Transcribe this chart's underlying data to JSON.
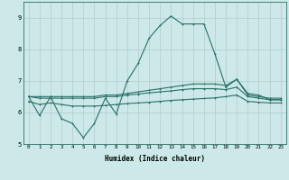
{
  "xlabel": "Humidex (Indice chaleur)",
  "bg_color": "#cce8e8",
  "line_color": "#2a7068",
  "grid_color": "#b0cccc",
  "xlim": [
    -0.5,
    23.5
  ],
  "ylim": [
    5,
    9.5
  ],
  "xticks": [
    0,
    1,
    2,
    3,
    4,
    5,
    6,
    7,
    8,
    9,
    10,
    11,
    12,
    13,
    14,
    15,
    16,
    17,
    18,
    19,
    20,
    21,
    22,
    23
  ],
  "yticks": [
    5,
    6,
    7,
    8,
    9
  ],
  "line1_x": [
    0,
    1,
    2,
    3,
    4,
    5,
    6,
    7,
    8,
    9,
    10,
    11,
    12,
    13,
    14,
    15,
    16,
    17,
    18,
    19,
    20,
    21,
    22,
    23
  ],
  "line1_y": [
    6.5,
    5.9,
    6.5,
    5.8,
    5.65,
    5.2,
    5.65,
    6.45,
    5.95,
    7.0,
    7.55,
    8.35,
    8.75,
    9.05,
    8.8,
    8.8,
    8.8,
    7.85,
    6.8,
    7.05,
    6.6,
    6.55,
    6.4,
    6.4
  ],
  "line2_x": [
    0,
    1,
    2,
    3,
    4,
    5,
    6,
    7,
    8,
    9,
    10,
    11,
    12,
    13,
    14,
    15,
    16,
    17,
    18,
    19,
    20,
    21,
    22,
    23
  ],
  "line2_y": [
    6.5,
    6.5,
    6.5,
    6.5,
    6.5,
    6.5,
    6.5,
    6.55,
    6.55,
    6.6,
    6.65,
    6.7,
    6.75,
    6.8,
    6.85,
    6.9,
    6.9,
    6.9,
    6.85,
    7.05,
    6.55,
    6.5,
    6.45,
    6.45
  ],
  "line3_x": [
    0,
    1,
    2,
    3,
    4,
    5,
    6,
    7,
    8,
    9,
    10,
    11,
    12,
    13,
    14,
    15,
    16,
    17,
    18,
    19,
    20,
    21,
    22,
    23
  ],
  "line3_y": [
    6.5,
    6.45,
    6.45,
    6.45,
    6.45,
    6.45,
    6.45,
    6.5,
    6.5,
    6.55,
    6.58,
    6.62,
    6.65,
    6.68,
    6.72,
    6.75,
    6.75,
    6.75,
    6.72,
    6.8,
    6.5,
    6.45,
    6.4,
    6.4
  ],
  "line4_x": [
    0,
    1,
    2,
    3,
    4,
    5,
    6,
    7,
    8,
    9,
    10,
    11,
    12,
    13,
    14,
    15,
    16,
    17,
    18,
    19,
    20,
    21,
    22,
    23
  ],
  "line4_y": [
    6.35,
    6.25,
    6.3,
    6.25,
    6.2,
    6.2,
    6.2,
    6.22,
    6.25,
    6.28,
    6.3,
    6.32,
    6.35,
    6.38,
    6.4,
    6.42,
    6.44,
    6.46,
    6.5,
    6.55,
    6.35,
    6.32,
    6.3,
    6.3
  ]
}
